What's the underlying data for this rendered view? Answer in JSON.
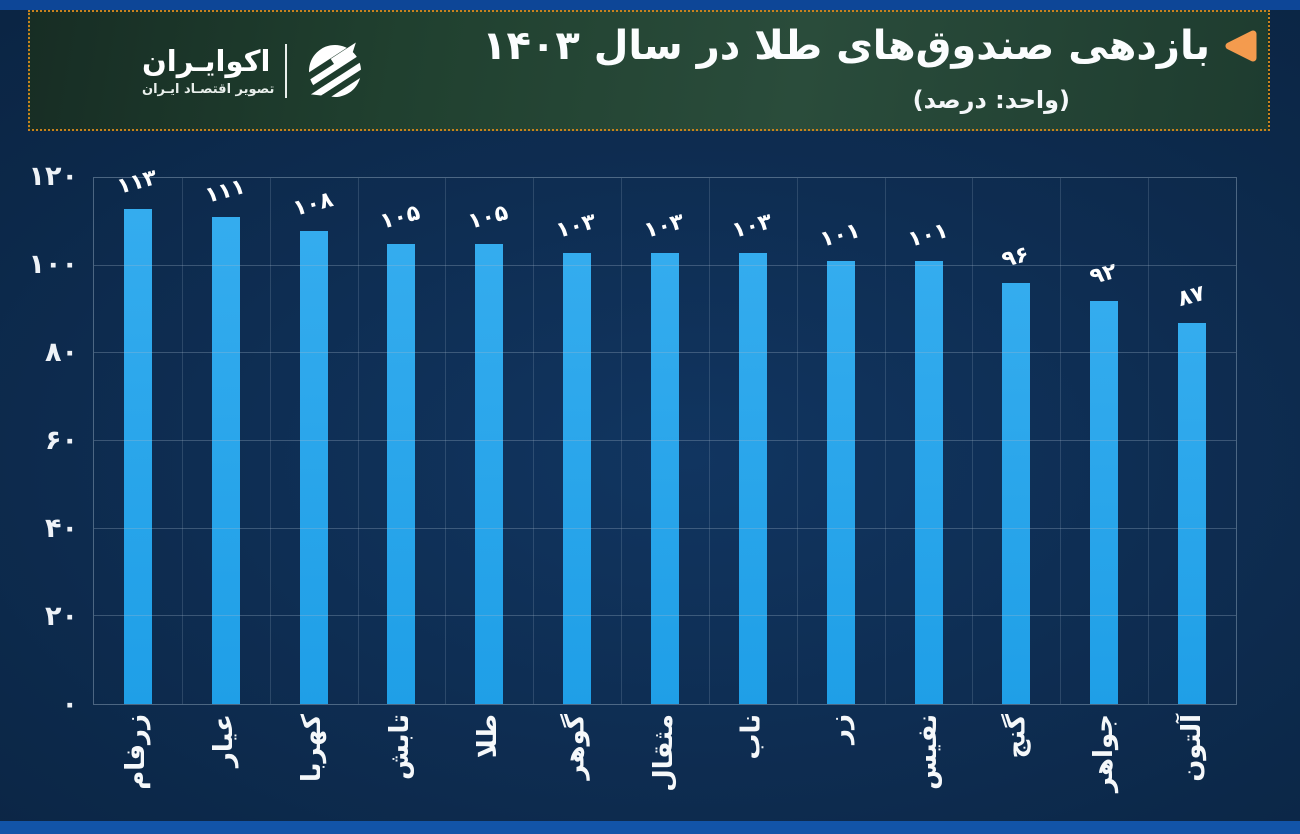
{
  "header": {
    "title": "بازدهی صندوق‌های طلا در سال ۱۴۰۳",
    "unit_note": "(واحد: درصد)",
    "logo": {
      "brand": "اکوایـران",
      "tagline": "تصویر اقتصـاد ایـران"
    }
  },
  "chart_data": {
    "type": "bar",
    "title": "بازدهی صندوق‌های طلا در سال ۱۴۰۳",
    "unit": "درصد",
    "categories": [
      "زرفام",
      "عیار",
      "کهربا",
      "تابش",
      "طلا",
      "گوهر",
      "مثقال",
      "ناب",
      "زر",
      "نفیس",
      "گنج",
      "جواهر",
      "آلتون"
    ],
    "values": [
      113,
      111,
      108,
      105,
      105,
      103,
      103,
      103,
      101,
      101,
      96,
      92,
      87
    ],
    "value_labels": [
      "۱۱۳",
      "۱۱۱",
      "۱۰۸",
      "۱۰۵",
      "۱۰۵",
      "۱۰۳",
      "۱۰۳",
      "۱۰۳",
      "۱۰۱",
      "۱۰۱",
      "۹۶",
      "۹۲",
      "۸۷"
    ],
    "y_tick_values": [
      0,
      20,
      40,
      60,
      80,
      100,
      120
    ],
    "y_tick_labels": [
      "۰",
      "۲۰",
      "۴۰",
      "۶۰",
      "۸۰",
      "۱۰۰",
      "۱۲۰"
    ],
    "ylim": [
      0,
      120
    ],
    "grid": true,
    "legend": "none",
    "bar_color": "#29a7ea"
  },
  "colors": {
    "page_background": "#0c2849",
    "top_strip": "#0d4697",
    "bottom_strip": "#1254a8",
    "header_background": "#244535",
    "header_border": "#c8811f",
    "title_marker": "#f49b4e",
    "bar": "#29a7ea",
    "text": "#ffffff",
    "gridline": "#a5b9cd"
  }
}
